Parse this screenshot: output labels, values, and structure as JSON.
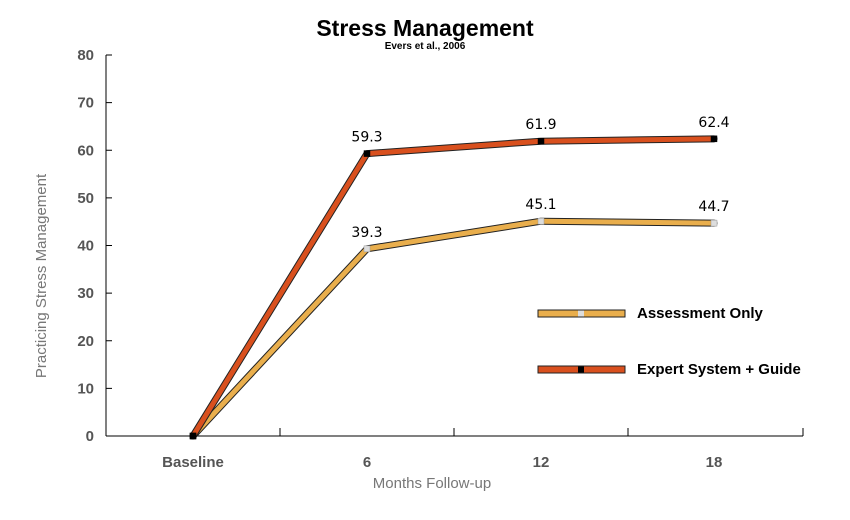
{
  "chart_data": {
    "type": "line",
    "title": "Stress Management",
    "subtitle": "Evers et al., 2006",
    "xlabel": "Months Follow-up",
    "ylabel": "Practicing Stress Management",
    "categories": [
      "Baseline",
      "6",
      "12",
      "18"
    ],
    "ylim": [
      0,
      80
    ],
    "yticks": [
      0,
      10,
      20,
      30,
      40,
      50,
      60,
      70,
      80
    ],
    "grid": false,
    "legend_position": "right",
    "series": [
      {
        "name": "Assessment Only",
        "values": [
          0,
          39.3,
          45.1,
          44.7
        ],
        "data_labels": [
          "",
          "39.3",
          "45.1",
          "44.7"
        ],
        "color": "#E9AE4C",
        "marker_color": "#dddddd"
      },
      {
        "name": "Expert System + Guide",
        "values": [
          0,
          59.3,
          61.9,
          62.4
        ],
        "data_labels": [
          "",
          "59.3",
          "61.9",
          "62.4"
        ],
        "color": "#D9501E",
        "marker_color": "#000000"
      }
    ]
  }
}
